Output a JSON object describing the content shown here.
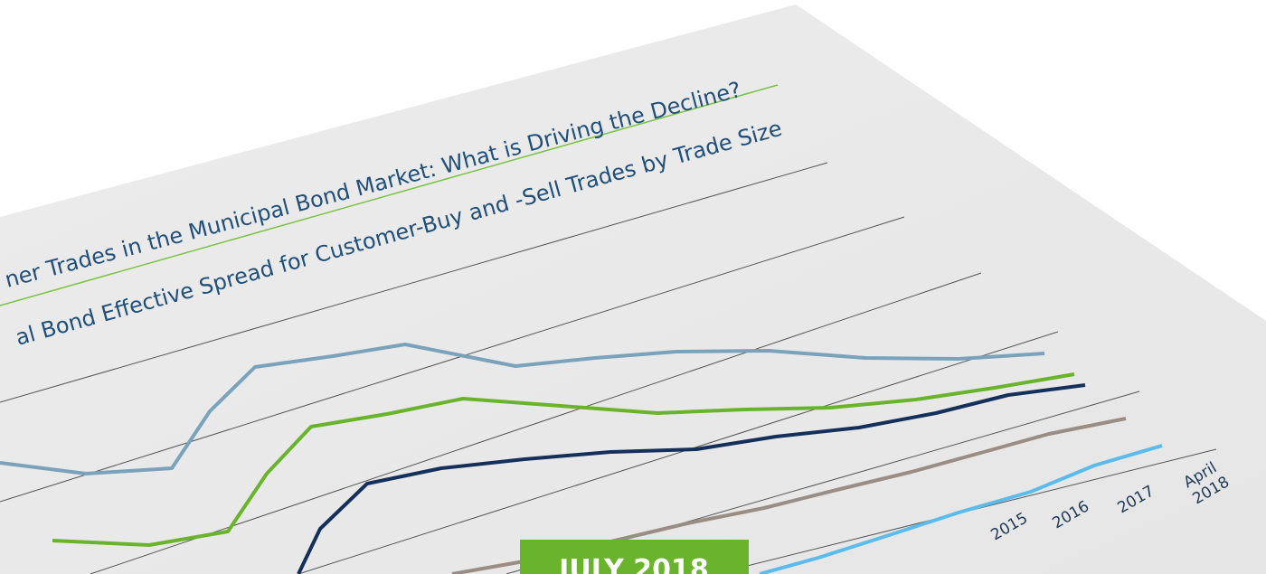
{
  "document": {
    "report_title": "ner Trades in the Municipal Bond Market: What is Driving the Decline?",
    "chart_title": "al Bond Effective Spread for Customer-Buy and -Sell Trades by Trade Size",
    "x_labels": [
      "2015",
      "2016",
      "2017"
    ],
    "x_label_last": [
      "April",
      "2018"
    ],
    "badge": "JULY 2018"
  }
}
